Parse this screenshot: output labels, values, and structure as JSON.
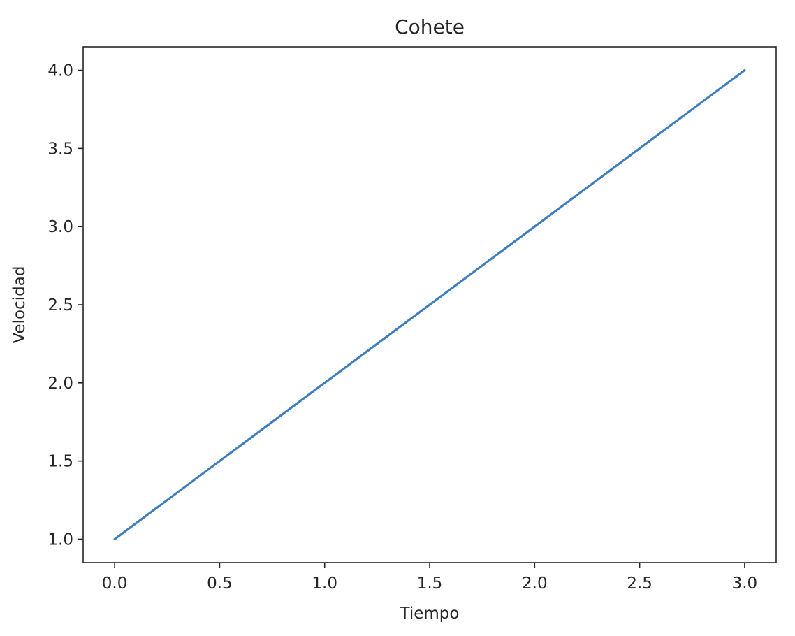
{
  "chart_data": {
    "type": "line",
    "title": "Cohete",
    "xlabel": "Tiempo",
    "ylabel": "Velocidad",
    "x": [
      0,
      1,
      2,
      3
    ],
    "series": [
      {
        "values": [
          1,
          2,
          3,
          4
        ]
      }
    ],
    "xlim": [
      -0.15,
      3.15
    ],
    "ylim": [
      0.85,
      4.15
    ],
    "xticks": [
      "0.0",
      "0.5",
      "1.0",
      "1.5",
      "2.0",
      "2.5",
      "3.0"
    ],
    "yticks": [
      "1.0",
      "1.5",
      "2.0",
      "2.5",
      "3.0",
      "3.5",
      "4.0"
    ],
    "grid": false,
    "colors": {
      "line": "#3f7fbf",
      "axes": "#262626"
    }
  }
}
